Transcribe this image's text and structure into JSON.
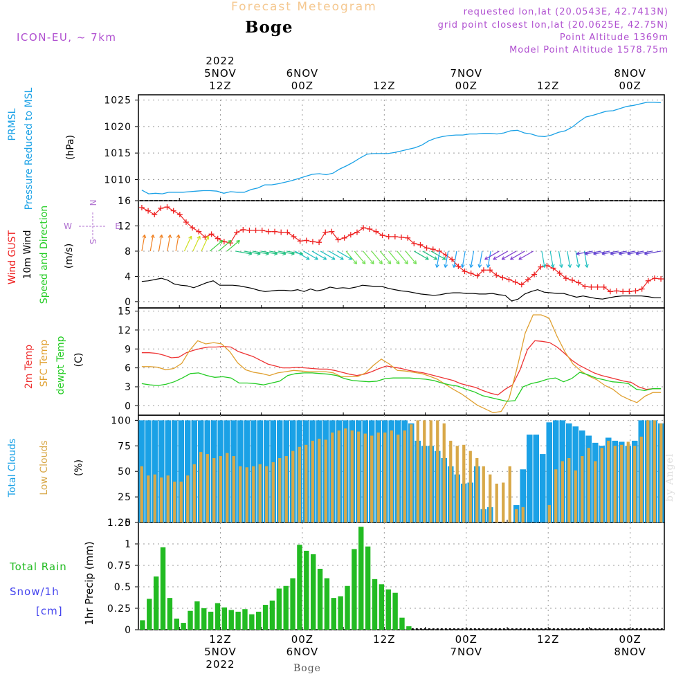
{
  "header": {
    "product": "Forecast Meteogram",
    "location": "Boge",
    "model": "ICON-EU, ~ 7km",
    "requested": "requested lon,lat (20.0543E, 42.7413N)",
    "grid_point": "grid point closest lon,lat (20.0625E, 42.75N)",
    "point_altitude": "Point Altitude 1369m",
    "model_altitude": "Model Point Altitude 1578.75m",
    "credit": "by Angel",
    "footer_location": "Boge"
  },
  "colors": {
    "pressure": "#1aa1e6",
    "gust": "#ee2222",
    "wind": "#000000",
    "dir_label": "#22cc22",
    "temp2m": "#ee3333",
    "sfc_temp": "#e0a030",
    "dewpt": "#22cc22",
    "total_clouds": "#1aa1e6",
    "low_clouds": "#d8a848",
    "rain": "#22bb22",
    "snow_label": "#4444ee",
    "header_purple": "#b050d0",
    "header_orange": "#f5c890"
  },
  "time_axis": {
    "top_labels": [
      {
        "h": 12,
        "lines": [
          "2022",
          "5NOV",
          "12Z"
        ]
      },
      {
        "h": 24,
        "lines": [
          "6NOV",
          "00Z"
        ]
      },
      {
        "h": 36,
        "lines": [
          "12Z"
        ]
      },
      {
        "h": 48,
        "lines": [
          "7NOV",
          "00Z"
        ]
      },
      {
        "h": 60,
        "lines": [
          "12Z"
        ]
      },
      {
        "h": 72,
        "lines": [
          "8NOV",
          "00Z"
        ]
      }
    ],
    "bottom_labels": [
      {
        "h": 12,
        "lines": [
          "12Z",
          "5NOV",
          "2022"
        ]
      },
      {
        "h": 24,
        "lines": [
          "00Z",
          "6NOV"
        ]
      },
      {
        "h": 36,
        "lines": [
          "12Z"
        ]
      },
      {
        "h": 48,
        "lines": [
          "00Z",
          "7NOV"
        ]
      },
      {
        "h": 60,
        "lines": [
          "12Z"
        ]
      },
      {
        "h": 72,
        "lines": [
          "00Z",
          "8NOV"
        ]
      }
    ]
  },
  "chart_data": [
    {
      "type": "line",
      "panel": "pressure",
      "ylabel_lines": [
        "PRMSL",
        "Pressure Reduced to MSL",
        "(hPa)"
      ],
      "ylim": [
        1006,
        1026
      ],
      "yticks": [
        "1010",
        "1015",
        "1020",
        "1025"
      ],
      "series": [
        {
          "name": "PRMSL",
          "x_hours_from_5NOV00Z": [
            0.5,
            1.5,
            2.5,
            3.5,
            4.5,
            5.5,
            6.5,
            7.5,
            8.5,
            9.5,
            10.5,
            11.5,
            12.5,
            13.5,
            14.5,
            15.5,
            16.5,
            17.5,
            18.5,
            19.5,
            20.5,
            21.5,
            22.5,
            23.5,
            24.5,
            25.5,
            26.5,
            27.5,
            28.5,
            29.5,
            30.5,
            31.5,
            32.5,
            33.5,
            34.5,
            35.5,
            36.5,
            37.5,
            38.5,
            39.5,
            40.5,
            41.5,
            42.5,
            43.5,
            44.5,
            45.5,
            46.5,
            47.5,
            48.5,
            49.5,
            50.5,
            51.5,
            52.5,
            53.5,
            54.5,
            55.5,
            56.5,
            57.5,
            58.5,
            59.5,
            60.5,
            61.5,
            62.5,
            63.5,
            64.5,
            65.5,
            66.5,
            67.5,
            68.5,
            69.5,
            70.5,
            71.5,
            72.5,
            73.5,
            74.5,
            75.5,
            76.5
          ],
          "values": [
            1008,
            1007.3,
            1007.4,
            1007.3,
            1007.6,
            1007.6,
            1007.6,
            1007.7,
            1007.8,
            1007.9,
            1007.9,
            1007.8,
            1007.4,
            1007.7,
            1007.6,
            1007.6,
            1008.1,
            1008.4,
            1009.0,
            1009.0,
            1009.2,
            1009.5,
            1009.8,
            1010.2,
            1010.6,
            1011.0,
            1011.1,
            1010.9,
            1011.2,
            1012.0,
            1012.6,
            1013.3,
            1014.1,
            1014.8,
            1014.9,
            1014.9,
            1014.9,
            1015.1,
            1015.4,
            1015.7,
            1016.0,
            1016.5,
            1017.3,
            1017.8,
            1018.1,
            1018.3,
            1018.4,
            1018.4,
            1018.6,
            1018.6,
            1018.7,
            1018.7,
            1018.6,
            1018.8,
            1019.2,
            1019.3,
            1018.8,
            1018.6,
            1018.2,
            1018.1,
            1018.4,
            1018.9,
            1019.2,
            1019.9,
            1020.9,
            1021.8,
            1022.1,
            1022.5,
            1022.9,
            1023.0,
            1023.4,
            1023.8,
            1024.0,
            1024.3,
            1024.6,
            1024.6,
            1024.5
          ]
        }
      ]
    },
    {
      "type": "line",
      "panel": "wind",
      "ylabel_lines": [
        "Wind GUST",
        "10m Wind",
        "Speed and Direction",
        "(m/s)"
      ],
      "compass_label": "N <-|-> E S W",
      "ylim": [
        -1,
        16
      ],
      "yticks": [
        "0",
        "4",
        "8",
        "12",
        "16"
      ],
      "series": [
        {
          "name": "Wind GUST",
          "values": [
            14.9,
            14.4,
            13.8,
            14.8,
            15.0,
            14.4,
            13.8,
            12.6,
            11.7,
            11.1,
            10.2,
            10.7,
            10.0,
            9.5,
            9.3,
            11.0,
            11.4,
            11.3,
            11.3,
            11.3,
            11.1,
            11.1,
            11.0,
            11.0,
            10.3,
            9.6,
            9.7,
            9.5,
            9.4,
            11.0,
            11.1,
            9.8,
            10.1,
            10.6,
            11.0,
            11.7,
            11.5,
            11.1,
            10.5,
            10.3,
            10.3,
            10.2,
            10.1,
            9.2,
            9.0,
            8.5,
            8.3,
            8.0,
            7.4,
            6.7,
            5.6,
            4.8,
            4.5,
            4.1,
            5.0,
            5.0,
            4.2,
            3.8,
            3.5,
            3.1,
            2.7,
            3.5,
            4.3,
            5.5,
            5.7,
            5.3,
            4.5,
            3.7,
            3.4,
            3.0,
            2.4,
            2.3,
            2.3,
            2.3,
            1.6,
            1.7,
            1.6,
            1.6,
            1.7,
            2.0,
            3.3,
            3.7,
            3.6
          ]
        },
        {
          "name": "10m Wind",
          "values": [
            3.2,
            3.3,
            3.5,
            3.7,
            3.4,
            2.8,
            2.6,
            2.5,
            2.2,
            2.6,
            3.0,
            3.3,
            2.6,
            2.6,
            2.6,
            2.5,
            2.3,
            2.1,
            1.8,
            1.6,
            1.7,
            1.8,
            1.8,
            1.7,
            1.9,
            1.6,
            2.0,
            1.7,
            1.9,
            2.3,
            2.1,
            2.2,
            2.1,
            2.3,
            2.6,
            2.5,
            2.4,
            2.4,
            2.1,
            1.9,
            1.7,
            1.6,
            1.4,
            1.2,
            1.1,
            1.0,
            1.1,
            1.3,
            1.4,
            1.4,
            1.3,
            1.3,
            1.2,
            1.2,
            1.3,
            1.1,
            1.0,
            0.1,
            0.4,
            1.2,
            1.6,
            1.9,
            1.5,
            1.4,
            1.3,
            1.3,
            1.0,
            0.7,
            0.9,
            0.7,
            0.5,
            0.4,
            0.6,
            0.8,
            0.9,
            0.9,
            0.9,
            0.9,
            0.8,
            0.6,
            0.6
          ]
        }
      ],
      "wind_arrows": {
        "count": 62,
        "direction_bands_deg": [
          {
            "from": 0,
            "to": 6,
            "deg": 190,
            "color": "#f08020"
          },
          {
            "from": 6,
            "to": 10,
            "deg": 205,
            "color": "#d0e020"
          },
          {
            "from": 10,
            "to": 14,
            "deg": 230,
            "color": "#40d040"
          },
          {
            "from": 14,
            "to": 22,
            "deg": 280,
            "color": "#20c080"
          },
          {
            "from": 22,
            "to": 30,
            "deg": 300,
            "color": "#20c0c0"
          },
          {
            "from": 30,
            "to": 40,
            "deg": 320,
            "color": "#70e050"
          },
          {
            "from": 40,
            "to": 44,
            "deg": 300,
            "color": "#20c080"
          },
          {
            "from": 44,
            "to": 52,
            "deg": 10,
            "color": "#20a0f0"
          },
          {
            "from": 52,
            "to": 58,
            "deg": 60,
            "color": "#8040d0"
          },
          {
            "from": 58,
            "to": 66,
            "deg": 350,
            "color": "#20c0c0"
          },
          {
            "from": 66,
            "to": 77,
            "deg": 80,
            "color": "#6040d0"
          }
        ]
      }
    },
    {
      "type": "line",
      "panel": "temperature",
      "ylabel_lines": [
        "2m Temp",
        "SFC Temp",
        "dewpt Temp",
        "(C)"
      ],
      "ylim": [
        -1.5,
        15.5
      ],
      "yticks": [
        "0",
        "3",
        "6",
        "9",
        "12",
        "15"
      ],
      "series": [
        {
          "name": "2m Temp",
          "values": [
            8.4,
            8.4,
            8.3,
            8.0,
            7.6,
            7.7,
            8.4,
            8.8,
            9.1,
            9.3,
            9.3,
            9.4,
            9.3,
            8.6,
            8.2,
            7.8,
            7.2,
            6.6,
            6.3,
            6.0,
            6.0,
            6.1,
            6.0,
            5.9,
            5.8,
            5.8,
            5.6,
            5.3,
            5.0,
            4.8,
            5.0,
            5.4,
            5.9,
            6.3,
            6.1,
            5.9,
            5.6,
            5.4,
            5.2,
            4.9,
            4.6,
            4.3,
            4.0,
            3.5,
            3.2,
            2.9,
            2.4,
            2.0,
            1.7,
            2.6,
            3.3,
            5.7,
            8.9,
            10.3,
            10.2,
            10.0,
            9.3,
            8.3,
            7.2,
            6.4,
            5.8,
            5.2,
            4.8,
            4.5,
            4.2,
            3.9,
            3.7,
            3.0,
            2.6,
            2.7,
            2.7
          ]
        },
        {
          "name": "SFC Temp",
          "values": [
            6.2,
            6.2,
            6.1,
            5.7,
            5.9,
            6.7,
            8.8,
            10.3,
            9.8,
            10.0,
            9.8,
            8.6,
            6.8,
            5.7,
            5.3,
            5.1,
            4.8,
            5.2,
            5.4,
            5.6,
            5.5,
            5.4,
            5.4,
            5.4,
            5.2,
            4.6,
            4.6,
            4.6,
            5.2,
            6.4,
            7.4,
            6.6,
            5.6,
            5.5,
            5.3,
            5.1,
            4.7,
            4.2,
            3.4,
            2.6,
            1.9,
            1.0,
            0.1,
            -0.5,
            -1.1,
            -0.9,
            1.2,
            6.0,
            11.5,
            14.4,
            14.4,
            13.9,
            11.0,
            8.5,
            6.6,
            5.5,
            4.7,
            4.1,
            3.2,
            2.6,
            1.6,
            1.0,
            0.5,
            1.5,
            2.1,
            2.1
          ]
        },
        {
          "name": "dewpt Temp",
          "values": [
            3.5,
            3.3,
            3.2,
            3.4,
            3.8,
            4.4,
            5.1,
            5.2,
            4.8,
            4.5,
            4.6,
            4.4,
            3.6,
            3.6,
            3.5,
            3.3,
            3.6,
            3.9,
            4.8,
            5.1,
            5.2,
            5.2,
            5.1,
            5.0,
            4.8,
            4.3,
            4.0,
            3.9,
            3.8,
            3.9,
            4.3,
            4.4,
            4.4,
            4.4,
            4.3,
            4.2,
            4.0,
            3.6,
            3.3,
            3.1,
            2.6,
            2.2,
            1.6,
            1.3,
            1.0,
            0.7,
            0.8,
            3.0,
            3.5,
            3.8,
            4.2,
            4.4,
            3.8,
            4.3,
            5.3,
            4.9,
            4.4,
            4.1,
            3.8,
            3.7,
            3.5,
            2.6,
            2.4,
            2.7,
            2.7
          ]
        }
      ]
    },
    {
      "type": "bar",
      "panel": "clouds",
      "ylabel_lines": [
        "Total Clouds",
        "Low Clouds",
        "(%)"
      ],
      "ylim": [
        0,
        105
      ],
      "yticks": [
        "0",
        "25",
        "50",
        "75",
        "100"
      ],
      "series": [
        {
          "name": "Total Clouds",
          "values": [
            100,
            100,
            100,
            100,
            100,
            100,
            100,
            100,
            100,
            100,
            100,
            100,
            100,
            100,
            100,
            100,
            100,
            100,
            100,
            100,
            100,
            100,
            100,
            100,
            100,
            100,
            100,
            100,
            100,
            100,
            100,
            100,
            100,
            100,
            100,
            100,
            100,
            100,
            100,
            100,
            100,
            97,
            80,
            75,
            75,
            70,
            63,
            55,
            47,
            38,
            39,
            55,
            13,
            15,
            0,
            0,
            0,
            17,
            52,
            86,
            86,
            67,
            98,
            100,
            100,
            97,
            94,
            90,
            85,
            78,
            75,
            83,
            80,
            79,
            75,
            80,
            100,
            100,
            100,
            97
          ]
        },
        {
          "name": "Low Clouds",
          "values": [
            55,
            46,
            47,
            44,
            46,
            40,
            40,
            46,
            57,
            69,
            67,
            63,
            65,
            68,
            65,
            55,
            54,
            55,
            57,
            55,
            59,
            63,
            65,
            70,
            74,
            76,
            80,
            82,
            81,
            88,
            90,
            92,
            90,
            89,
            87,
            85,
            88,
            88,
            90,
            86,
            90,
            96,
            100,
            100,
            100,
            100,
            97,
            80,
            75,
            76,
            70,
            63,
            55,
            47,
            38,
            39,
            55,
            13,
            15,
            0,
            0,
            0,
            17,
            52,
            60,
            63,
            51,
            65,
            73,
            60,
            73,
            80,
            75,
            76,
            79,
            75,
            84,
            100,
            100,
            97
          ]
        }
      ]
    },
    {
      "type": "bar",
      "panel": "precip",
      "ylabel_lines": [
        "1hr Precip (mm)"
      ],
      "left_labels": [
        "Total  Rain",
        "Snow/1h",
        "[cm]"
      ],
      "ylim": [
        0,
        1.25
      ],
      "yticks": [
        "0",
        "0.25",
        "0.5",
        "0.75",
        "1",
        "1.25"
      ],
      "series": [
        {
          "name": "Total Rain",
          "values": [
            0.11,
            0.36,
            0.62,
            0.96,
            0.37,
            0.13,
            0.08,
            0.22,
            0.33,
            0.25,
            0.21,
            0.31,
            0.26,
            0.23,
            0.21,
            0.24,
            0.18,
            0.21,
            0.29,
            0.34,
            0.48,
            0.51,
            0.6,
            0.99,
            0.92,
            0.88,
            0.71,
            0.6,
            0.37,
            0.39,
            0.51,
            0.94,
            1.2,
            0.97,
            0.59,
            0.53,
            0.47,
            0.43,
            0.14,
            0.04
          ]
        }
      ]
    }
  ]
}
